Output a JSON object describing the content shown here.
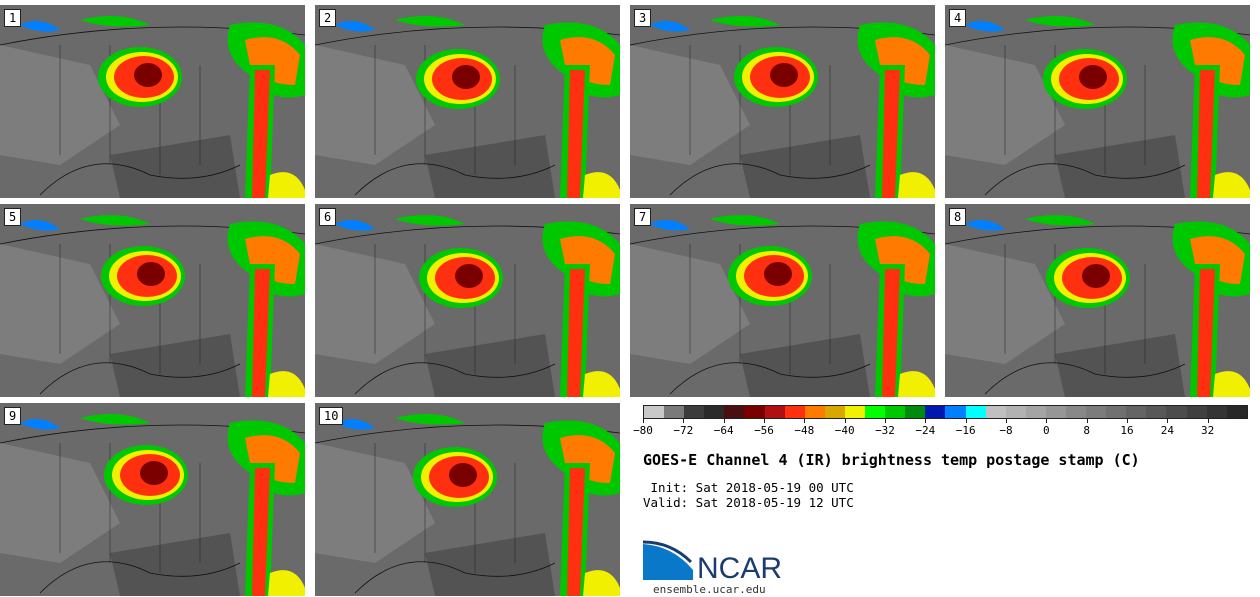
{
  "panels": [
    {
      "label": "1"
    },
    {
      "label": "2"
    },
    {
      "label": "3"
    },
    {
      "label": "4"
    },
    {
      "label": "5"
    },
    {
      "label": "6"
    },
    {
      "label": "7"
    },
    {
      "label": "8"
    },
    {
      "label": "9"
    },
    {
      "label": "10"
    }
  ],
  "colorbar": {
    "colors": [
      "#c8c8c8",
      "#7a7a7a",
      "#3c3c3c",
      "#2a2a2a",
      "#4a1010",
      "#7a0000",
      "#b01010",
      "#ff3010",
      "#ff7a00",
      "#d8a800",
      "#f0f000",
      "#00ff00",
      "#00c800",
      "#008a10",
      "#0018b0",
      "#0080ff",
      "#00ffff",
      "#c0c0c0",
      "#b2b2b2",
      "#a4a4a4",
      "#969696",
      "#888888",
      "#7c7c7c",
      "#707070",
      "#646464",
      "#585858",
      "#4c4c4c",
      "#404040",
      "#343434",
      "#282828"
    ],
    "ticks": [
      "−80",
      "−72",
      "−64",
      "−56",
      "−48",
      "−40",
      "−32",
      "−24",
      "−16",
      "−8",
      "0",
      "8",
      "16",
      "24",
      "32"
    ]
  },
  "title": "GOES-E Channel 4 (IR) brightness temp postage stamp (C)",
  "init": " Init: Sat 2018-05-19 00 UTC",
  "valid": "Valid: Sat 2018-05-19 12 UTC",
  "logo": {
    "text": "NCAR",
    "color": "#0a6fb0",
    "accent": "#1b3c6e"
  },
  "site": "ensemble.ucar.edu"
}
